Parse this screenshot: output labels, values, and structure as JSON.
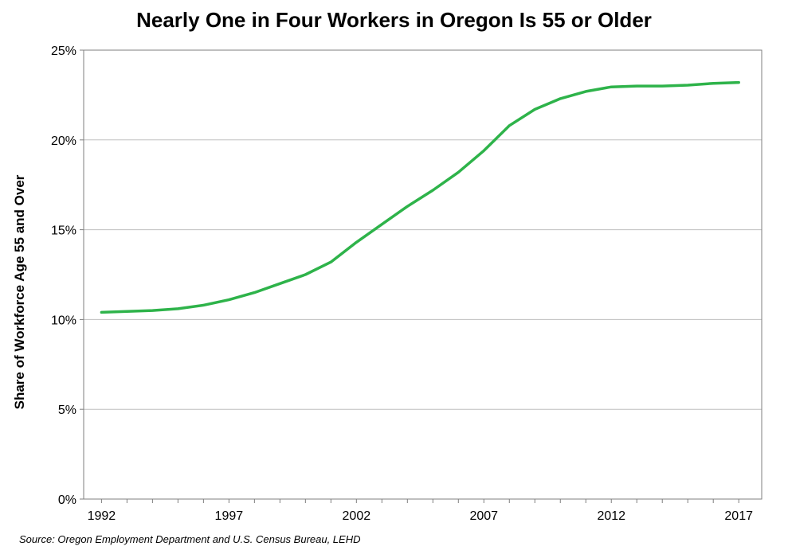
{
  "title": "Nearly One in Four Workers in Oregon Is 55 or Older",
  "source": "Source: Oregon Employment Department and U.S. Census Bureau, LEHD",
  "chart_data": {
    "type": "line",
    "title": "Nearly One in Four Workers in Oregon Is 55 or Older",
    "xlabel": "",
    "ylabel": "Share of Workforce Age 55 and Over",
    "xlim": [
      1991.3,
      2017.9
    ],
    "ylim": [
      0,
      25
    ],
    "x_ticks": [
      1992,
      1997,
      2002,
      2007,
      2012,
      2017
    ],
    "y_ticks": [
      0,
      5,
      10,
      15,
      20,
      25
    ],
    "y_tick_labels": [
      "0%",
      "5%",
      "10%",
      "15%",
      "20%",
      "25%"
    ],
    "grid": "horizontal",
    "legend": "none",
    "series": [
      {
        "color": "#2eb34a",
        "x": [
          1992,
          1993,
          1994,
          1995,
          1996,
          1997,
          1998,
          1999,
          2000,
          2001,
          2002,
          2003,
          2004,
          2005,
          2006,
          2007,
          2008,
          2009,
          2010,
          2011,
          2012,
          2013,
          2014,
          2015,
          2016,
          2017
        ],
        "values": [
          10.4,
          10.45,
          10.5,
          10.6,
          10.8,
          11.1,
          11.5,
          12.0,
          12.5,
          13.2,
          14.3,
          15.3,
          16.3,
          17.2,
          18.2,
          19.4,
          20.8,
          21.7,
          22.3,
          22.7,
          22.95,
          23.0,
          23.0,
          23.05,
          23.15,
          23.2
        ]
      }
    ]
  }
}
